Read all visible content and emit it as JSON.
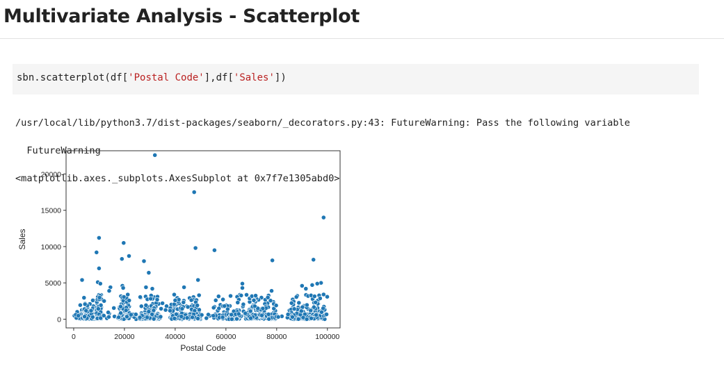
{
  "page": {
    "title": "Multivariate Analysis - Scatterplot"
  },
  "code_cell": {
    "prefix": "sbn.scatterplot(df[",
    "arg1": "'Postal Code'",
    "mid": "],df[",
    "arg2": "'Sales'",
    "suffix": "])"
  },
  "output": {
    "warning_line": "/usr/local/lib/python3.7/dist-packages/seaborn/_decorators.py:43: FutureWarning: Pass the following variable",
    "warning_line2": "  FutureWarning",
    "repr_line": "<matplotlib.axes._subplots.AxesSubplot at 0x7f7e1305abd0>"
  },
  "chart_data": {
    "type": "scatter",
    "xlabel": "Postal Code",
    "ylabel": "Sales",
    "xlim": [
      -3000,
      105000
    ],
    "ylim": [
      -1200,
      23200
    ],
    "xticks": [
      0,
      20000,
      40000,
      60000,
      80000,
      100000
    ],
    "yticks": [
      0,
      5000,
      10000,
      15000,
      20000
    ],
    "grid": false,
    "point_color": "#1f77b4",
    "outliers": [
      [
        32000,
        22600
      ],
      [
        47500,
        17500
      ],
      [
        98500,
        14000
      ],
      [
        10000,
        11200
      ],
      [
        19700,
        10500
      ],
      [
        48000,
        9800
      ],
      [
        55500,
        9500
      ],
      [
        9000,
        9200
      ],
      [
        21800,
        8700
      ],
      [
        19000,
        8300
      ],
      [
        27700,
        8000
      ],
      [
        78300,
        8100
      ],
      [
        94500,
        8200
      ],
      [
        10000,
        7000
      ],
      [
        29600,
        6400
      ],
      [
        3300,
        5400
      ],
      [
        49000,
        5400
      ],
      [
        9500,
        5100
      ],
      [
        10500,
        4900
      ],
      [
        66500,
        4900
      ],
      [
        66500,
        4300
      ],
      [
        97500,
        5000
      ],
      [
        96000,
        4900
      ],
      [
        94000,
        4700
      ],
      [
        19200,
        4600
      ],
      [
        19500,
        4300
      ],
      [
        14500,
        4400
      ],
      [
        28500,
        4400
      ],
      [
        31000,
        4200
      ],
      [
        43500,
        4400
      ],
      [
        90000,
        4600
      ],
      [
        91500,
        4200
      ],
      [
        78000,
        3900
      ],
      [
        98500,
        3400
      ],
      [
        14000,
        3900
      ],
      [
        56000,
        2600
      ],
      [
        71000,
        2600
      ],
      [
        12000,
        2500
      ],
      [
        40000,
        2600
      ],
      [
        35000,
        2200
      ]
    ]
  }
}
